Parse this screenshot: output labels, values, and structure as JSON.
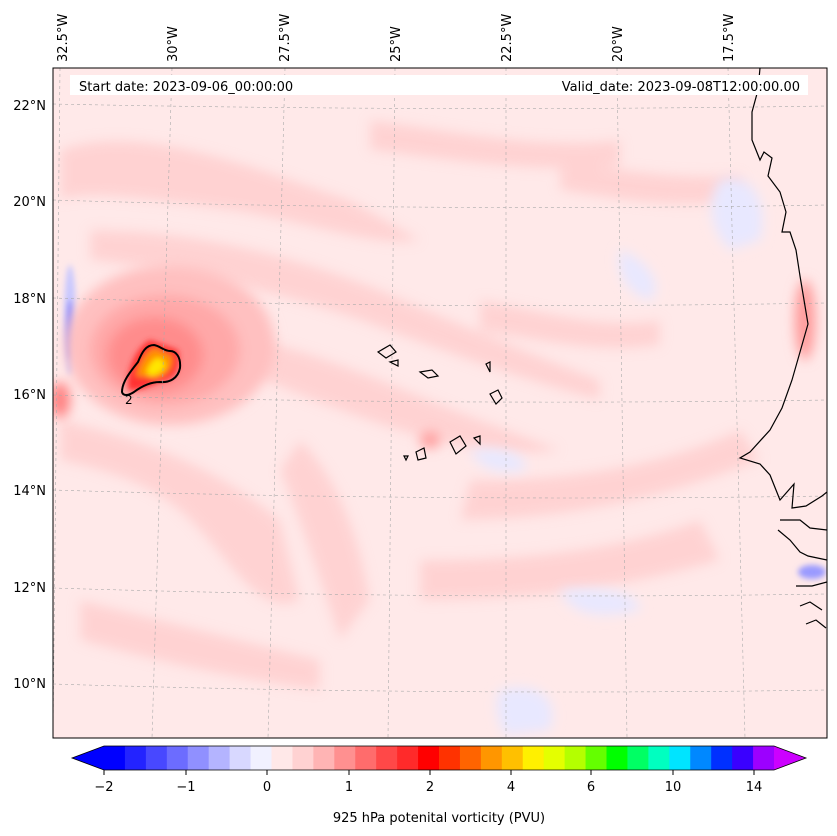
{
  "map": {
    "start_label": "Start date: 2023-09-06_00:00:00",
    "valid_label": "Valid_date: 2023-09-08T12:00:00.00",
    "lon_ticks": [
      "32.5°W",
      "30°W",
      "27.5°W",
      "25°W",
      "22.5°W",
      "20°W",
      "17.5°W"
    ],
    "lat_ticks": [
      "22°N",
      "20°N",
      "18°N",
      "16°N",
      "14°N",
      "12°N",
      "10°N"
    ],
    "contour_label": "2"
  },
  "colorbar": {
    "label": "925 hPa potenital vorticity (PVU)",
    "ticks": [
      "−2",
      "−1",
      "0",
      "1",
      "2",
      "4",
      "6",
      "10",
      "14"
    ],
    "colors": [
      "#0000ff",
      "#2323ff",
      "#4848ff",
      "#6c6cff",
      "#9090ff",
      "#b4b4ff",
      "#d8d8ff",
      "#f1f1ff",
      "#ffe8e8",
      "#ffd2d2",
      "#ffb4b4",
      "#ff9090",
      "#ff6c6c",
      "#ff4848",
      "#ff2a2a",
      "#ff0000",
      "#ff3200",
      "#ff6400",
      "#ff9600",
      "#ffc000",
      "#fff000",
      "#e4ff00",
      "#b4ff00",
      "#64ff00",
      "#00ff00",
      "#00ff64",
      "#00ffc0",
      "#00e4ff",
      "#0088ff",
      "#0030ff",
      "#3a00ff",
      "#9c00ff"
    ],
    "low_color": "#0000ff",
    "high_color": "#cc00ff"
  }
}
